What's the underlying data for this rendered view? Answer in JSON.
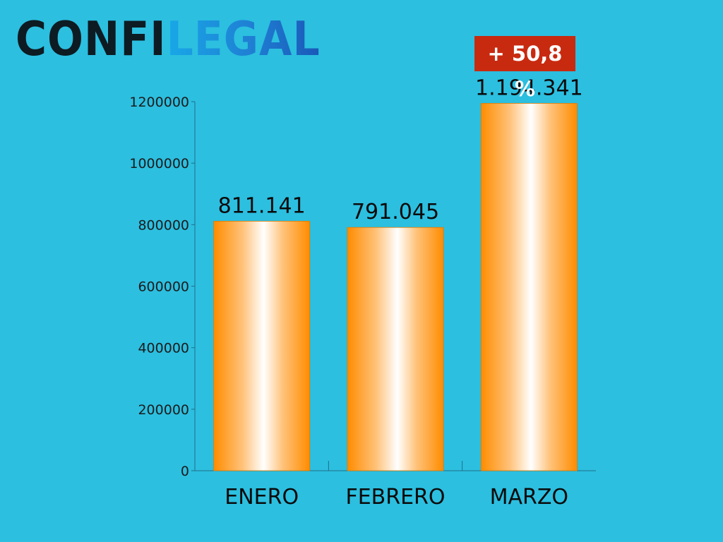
{
  "logo": {
    "part1": "CONFI",
    "part2": "LEGAL"
  },
  "badge": "+ 50,8 %",
  "colors": {
    "background": "#2cbfe0",
    "bar": "#ff8c00",
    "bar_highlight": "#ffffff",
    "badge": "#c82a10",
    "axis": "#1f6f8a"
  },
  "chart_data": {
    "type": "bar",
    "categories": [
      "ENERO",
      "FEBRERO",
      "MARZO"
    ],
    "values": [
      811141,
      791045,
      1194341
    ],
    "data_labels": [
      "811.141",
      "791.045",
      "1.194.341"
    ],
    "yticks": [
      0,
      200000,
      400000,
      600000,
      800000,
      1000000,
      1200000
    ],
    "ytick_labels": [
      "0",
      "200000",
      "400000",
      "600000",
      "800000",
      "1000000",
      "1200000"
    ],
    "ylim": [
      0,
      1200000
    ],
    "title": "",
    "xlabel": "",
    "ylabel": "",
    "grid": false
  }
}
